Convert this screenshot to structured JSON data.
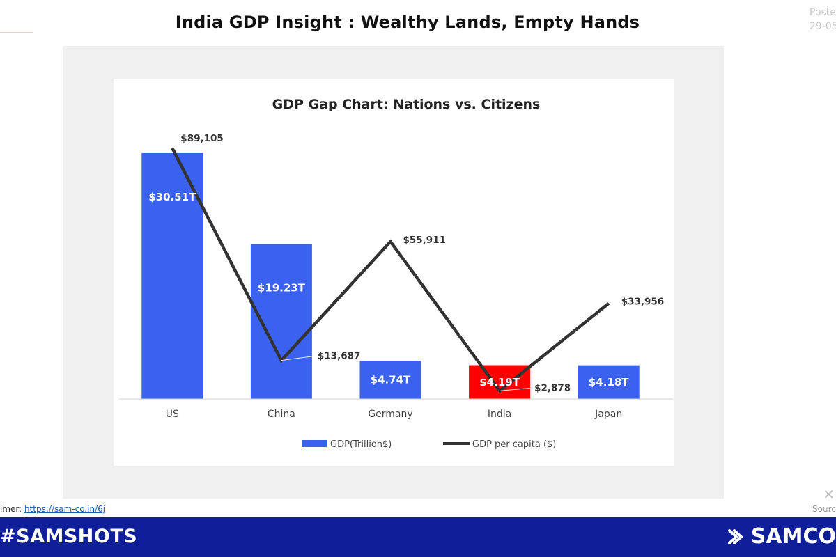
{
  "header": {
    "title": "India GDP Insight : Wealthy Lands, Empty Hands",
    "posted_label": "Poste",
    "posted_date": "29-05"
  },
  "footer": {
    "disclaimer_label": "imer: ",
    "disclaimer_link": "https://sam-co.in/6j",
    "source_label": "Sourc",
    "brand_left": "#SAMSHOTS",
    "brand_right": "SAMCO"
  },
  "colors": {
    "bar": "#3a62ee",
    "bar_highlight": "#ff0000",
    "line": "#333333",
    "footer_bg": "#0f1f9a"
  },
  "chart_data": {
    "type": "bar",
    "title": "GDP Gap Chart: Nations vs. Citizens",
    "categories": [
      "US",
      "China",
      "Germany",
      "India",
      "Japan"
    ],
    "highlight_category": "India",
    "series": [
      {
        "name": "GDP(Trillion$)",
        "type": "bar",
        "values": [
          30.51,
          19.23,
          4.74,
          4.19,
          4.18
        ],
        "labels": [
          "$30.51T",
          "$19.23T",
          "$4.74T",
          "$4.19T",
          "$4.18T"
        ]
      },
      {
        "name": "GDP per capita ($)",
        "type": "line",
        "values": [
          89105,
          13687,
          55911,
          2878,
          33956
        ],
        "labels": [
          "$89,105",
          "$13,687",
          "$55,911",
          "$2,878",
          "$33,956"
        ]
      }
    ],
    "legend_position": "bottom",
    "grid": false
  }
}
